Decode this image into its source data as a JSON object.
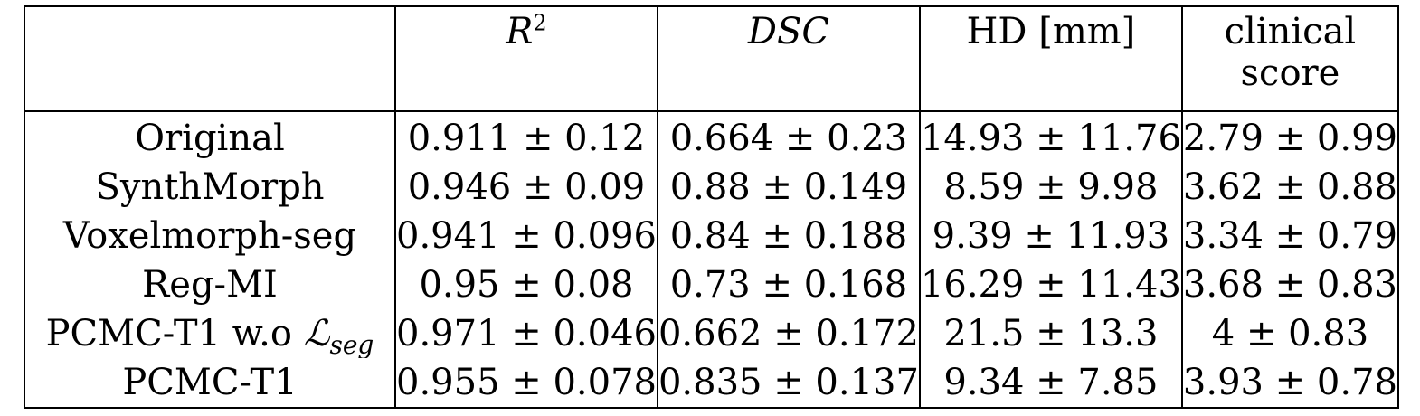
{
  "table": {
    "headers": [
      {
        "text": ""
      },
      {
        "base": "R",
        "sup": "2"
      },
      {
        "text": "DSC"
      },
      {
        "text": "HD [mm]"
      },
      {
        "line1": "clinical",
        "line2": "score"
      }
    ],
    "rows": [
      {
        "method": "Original",
        "r2": "0.911 ± 0.12",
        "dsc": "0.664 ± 0.23",
        "hd": "14.93 ± 11.76",
        "clinical": "2.79 ± 0.99"
      },
      {
        "method": "SynthMorph",
        "r2": "0.946 ± 0.09",
        "dsc": "0.88 ± 0.149",
        "hd": "8.59 ± 9.98",
        "clinical": "3.62 ± 0.88"
      },
      {
        "method": "Voxelmorph-seg",
        "r2": "0.941 ± 0.096",
        "dsc": "0.84 ± 0.188",
        "hd": "9.39 ± 11.93",
        "clinical": "3.34 ± 0.79"
      },
      {
        "method": "Reg-MI",
        "r2": "0.95 ± 0.08",
        "dsc": "0.73 ± 0.168",
        "hd": "16.29 ± 11.43",
        "clinical": "3.68 ± 0.83"
      },
      {
        "method_prefix": "PCMC-T1 w.o ",
        "method_symbol": "ℒ",
        "method_sub": "seg",
        "r2": "0.971 ± 0.046",
        "dsc": "0.662 ± 0.172",
        "hd": "21.5 ± 13.3",
        "clinical": "4 ± 0.83"
      },
      {
        "method": "PCMC-T1",
        "r2": "0.955 ± 0.078",
        "dsc": "0.835 ± 0.137",
        "hd": "9.34 ± 7.85",
        "clinical": "3.93 ± 0.78"
      }
    ]
  }
}
